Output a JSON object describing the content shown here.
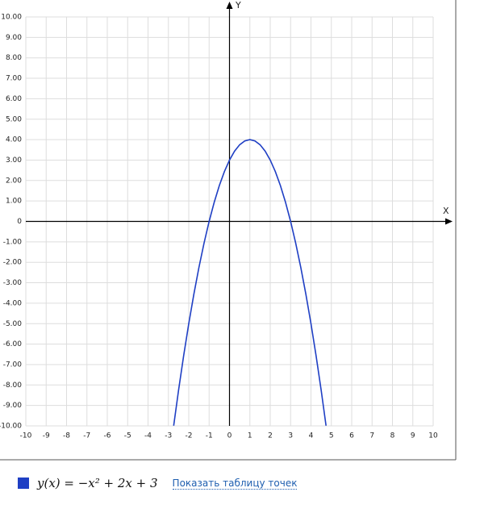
{
  "chart_data": {
    "type": "line",
    "x_label": "X",
    "y_label": "Y",
    "x": [
      -2.74,
      -2.5,
      -2.25,
      -2,
      -1.75,
      -1.5,
      -1.25,
      -1,
      -0.75,
      -0.5,
      -0.25,
      0,
      0.25,
      0.5,
      0.75,
      1,
      1.25,
      1.5,
      1.75,
      2,
      2.25,
      2.5,
      2.75,
      3,
      3.25,
      3.5,
      3.75,
      4,
      4.25,
      4.5,
      4.74
    ],
    "series": [
      {
        "name": "y(x) = −x² + 2x + 3",
        "color": "#1f3fc4",
        "values": [
          -9.99,
          -8.25,
          -6.5625,
          -5,
          -3.5625,
          -2.25,
          -1.0625,
          0,
          0.9375,
          1.75,
          2.4375,
          3,
          3.4375,
          3.75,
          3.9375,
          4,
          3.9375,
          3.75,
          3.4375,
          3,
          2.4375,
          1.75,
          0.9375,
          0,
          -1.0625,
          -2.25,
          -3.5625,
          -5,
          -6.5625,
          -8.25,
          -9.99
        ]
      }
    ],
    "xlim": [
      -10,
      10
    ],
    "ylim": [
      -10,
      10
    ],
    "xticks": [
      -10,
      -9,
      -8,
      -7,
      -6,
      -5,
      -4,
      -3,
      -2,
      -1,
      0,
      1,
      2,
      3,
      4,
      5,
      6,
      7,
      8,
      9,
      10
    ],
    "yticks": [
      {
        "value": -10,
        "label": "-10.00"
      },
      {
        "value": -9,
        "label": "-9.00"
      },
      {
        "value": -8,
        "label": "-8.00"
      },
      {
        "value": -7,
        "label": "-7.00"
      },
      {
        "value": -6,
        "label": "-6.00"
      },
      {
        "value": -5,
        "label": "-5.00"
      },
      {
        "value": -4,
        "label": "-4.00"
      },
      {
        "value": -3,
        "label": "-3.00"
      },
      {
        "value": -2,
        "label": "-2.00"
      },
      {
        "value": -1,
        "label": "-1.00"
      },
      0,
      {
        "value": 1,
        "label": "1.00"
      },
      {
        "value": 2,
        "label": "2.00"
      },
      {
        "value": 3,
        "label": "3.00"
      },
      {
        "value": 4,
        "label": "4.00"
      },
      {
        "value": 5,
        "label": "5.00"
      },
      {
        "value": 6,
        "label": "6.00"
      },
      {
        "value": 7,
        "label": "7.00"
      },
      {
        "value": 8,
        "label": "8.00"
      },
      {
        "value": 9,
        "label": "9.00"
      },
      {
        "value": 10,
        "label": "10.00"
      }
    ],
    "grid": true,
    "table_link": "Показать таблицу точек"
  }
}
